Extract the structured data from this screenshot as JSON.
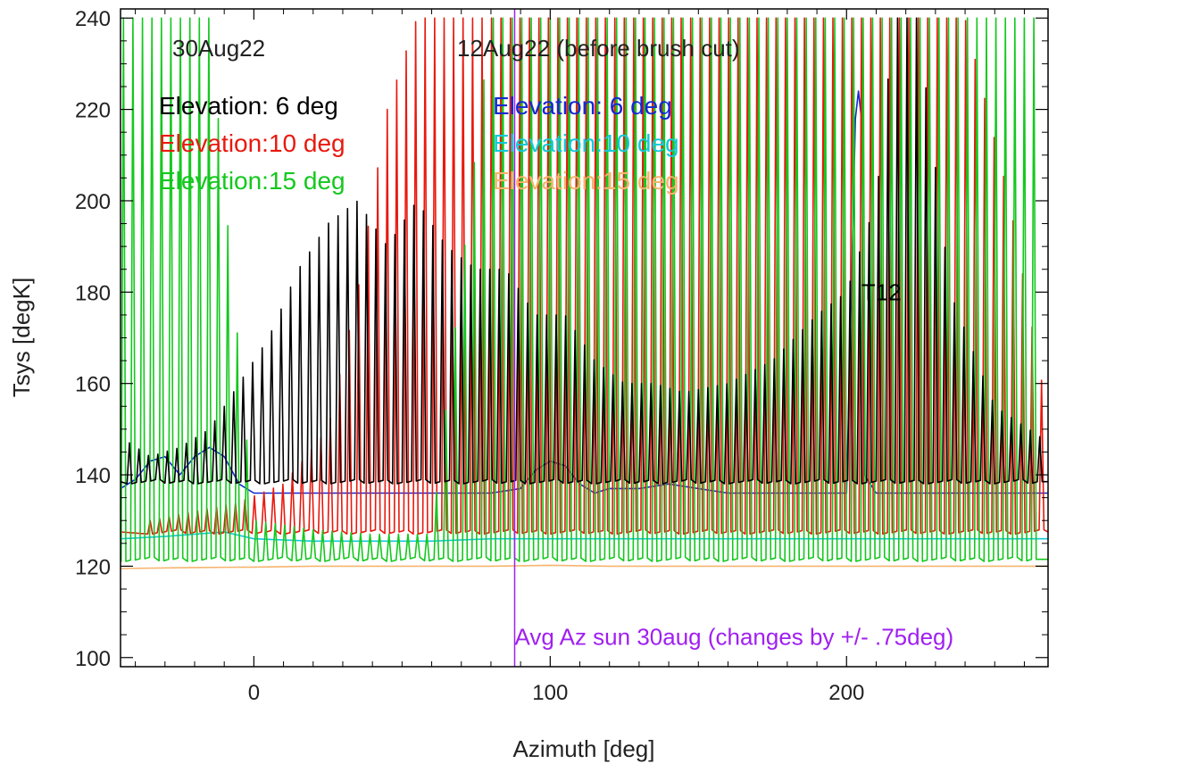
{
  "chart_data": {
    "type": "line",
    "xlabel": "Azimuth [deg]",
    "ylabel": "Tsys [degK]",
    "xlim": [
      -45,
      268
    ],
    "ylim": [
      98,
      242
    ],
    "xticks": [
      0,
      100,
      200
    ],
    "xtick_labels": [
      "0",
      "100",
      "200"
    ],
    "yticks": [
      100,
      120,
      140,
      160,
      180,
      200,
      220,
      240
    ],
    "ytick_labels": [
      "100",
      "120",
      "140",
      "160",
      "180",
      "200",
      "220",
      "240"
    ],
    "grid": false,
    "headings": {
      "left": "30Aug22",
      "right": "12Aug22 (before brush cut)"
    },
    "series": [
      {
        "name": "Elevation: 6 deg",
        "date": "30Aug22",
        "color": "#000000",
        "baseline": 138.5,
        "spike_spacing_deg": 3.2,
        "spike_x_range": [
          -42,
          266
        ],
        "spike_peaks": [
          [
            -42,
            147
          ],
          [
            -35,
            144
          ],
          [
            -25,
            146
          ],
          [
            -15,
            150
          ],
          [
            -5,
            160
          ],
          [
            5,
            170
          ],
          [
            15,
            185
          ],
          [
            25,
            195
          ],
          [
            35,
            200
          ],
          [
            45,
            190
          ],
          [
            55,
            200
          ],
          [
            65,
            190
          ],
          [
            75,
            185
          ],
          [
            85,
            185
          ],
          [
            95,
            175
          ],
          [
            105,
            175
          ],
          [
            115,
            165
          ],
          [
            125,
            160
          ],
          [
            135,
            160
          ],
          [
            145,
            158
          ],
          [
            160,
            160
          ],
          [
            175,
            165
          ],
          [
            190,
            175
          ],
          [
            200,
            180
          ],
          [
            210,
            200
          ],
          [
            216,
            240
          ],
          [
            224,
            240
          ],
          [
            235,
            180
          ],
          [
            250,
            155
          ],
          [
            266,
            148
          ]
        ]
      },
      {
        "name": "Elevation:10 deg",
        "date": "30Aug22",
        "color": "#e8190e",
        "baseline": 127.5,
        "spike_spacing_deg": 3.2,
        "spike_x_range": [
          -35,
          266
        ],
        "spike_peaks": [
          [
            -35,
            130
          ],
          [
            -20,
            132
          ],
          [
            -5,
            134
          ],
          [
            10,
            138
          ],
          [
            25,
            150
          ],
          [
            35,
            180
          ],
          [
            45,
            220
          ],
          [
            55,
            240
          ],
          [
            65,
            240
          ],
          [
            75,
            240
          ],
          [
            85,
            240
          ],
          [
            95,
            240
          ],
          [
            105,
            240
          ],
          [
            115,
            240
          ],
          [
            125,
            240
          ],
          [
            140,
            240
          ],
          [
            160,
            240
          ],
          [
            180,
            240
          ],
          [
            200,
            240
          ],
          [
            220,
            240
          ],
          [
            240,
            240
          ],
          [
            255,
            200
          ],
          [
            266,
            160
          ]
        ]
      },
      {
        "name": "Elevation:15 deg",
        "date": "30Aug22",
        "color": "#14c81e",
        "baseline": 121.5,
        "spike_spacing_deg": 3.2,
        "spike_x_range": [
          -44,
          266
        ],
        "spike_peaks": [
          [
            -44,
            240
          ],
          [
            -30,
            240
          ],
          [
            -15,
            240
          ],
          [
            0,
            130
          ],
          [
            20,
            128
          ],
          [
            40,
            127
          ],
          [
            60,
            127
          ],
          [
            80,
            240
          ],
          [
            100,
            240
          ],
          [
            120,
            240
          ],
          [
            140,
            240
          ],
          [
            160,
            240
          ],
          [
            180,
            240
          ],
          [
            200,
            240
          ],
          [
            220,
            240
          ],
          [
            240,
            240
          ],
          [
            266,
            240
          ]
        ]
      },
      {
        "name": "Elevation: 6 deg",
        "date": "12Aug22",
        "color": "#1428d2",
        "x": [
          -45,
          -40,
          -35,
          -30,
          -25,
          -20,
          -15,
          -10,
          -5,
          0,
          20,
          40,
          60,
          80,
          90,
          95,
          100,
          105,
          110,
          115,
          120,
          130,
          140,
          150,
          160,
          180,
          200,
          203,
          204,
          205,
          206,
          210,
          230,
          268
        ],
        "y": [
          137,
          139,
          143,
          144,
          140,
          144,
          146,
          144,
          138,
          136,
          136,
          136,
          136,
          136,
          137,
          141,
          143,
          142,
          138,
          136,
          137,
          137,
          138,
          137,
          136,
          136,
          136,
          218,
          224,
          218,
          140,
          136,
          136,
          136
        ]
      },
      {
        "name": "Elevation:10 deg",
        "date": "12Aug22",
        "color": "#14c8dc",
        "x": [
          -45,
          -30,
          -20,
          -10,
          0,
          20,
          40,
          60,
          80,
          100,
          120,
          140,
          160,
          180,
          200,
          220,
          240,
          268
        ],
        "y": [
          126,
          126.5,
          127,
          127.5,
          126,
          125.5,
          125.5,
          125.5,
          126,
          126,
          126,
          126,
          126,
          126,
          126,
          126,
          126,
          126
        ]
      },
      {
        "name": "Elevation:15 deg",
        "date": "12Aug22",
        "color": "#f5b46e",
        "x": [
          -45,
          -20,
          0,
          20,
          40,
          60,
          80,
          100,
          120,
          140,
          160,
          180,
          200,
          220,
          240,
          268
        ],
        "y": [
          119.5,
          119.7,
          119.8,
          120,
          120,
          120,
          120,
          120.2,
          120,
          120,
          120,
          120,
          120,
          120,
          120,
          120
        ]
      }
    ],
    "annotations": [
      {
        "text": "T12",
        "x": 205,
        "y": 180,
        "color": "#000000"
      },
      {
        "text": "Avg Az sun 30aug (changes by +/- .75deg)",
        "x": 88,
        "y": 104.5,
        "color": "#a020f0"
      }
    ],
    "vline": {
      "x": 88,
      "color": "#a020f0"
    }
  }
}
